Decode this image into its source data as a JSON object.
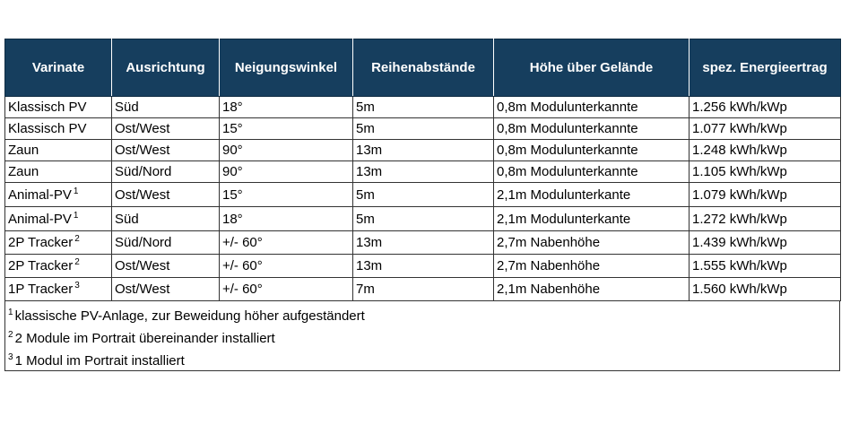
{
  "table": {
    "header": [
      "Varinate",
      "Ausrichtung",
      "Neigungswinkel",
      "Reihenabstände",
      "Höhe über Gelände",
      "spez. Energieertrag"
    ],
    "rows": [
      {
        "cells": [
          "Klassisch PV",
          "Süd",
          "18°",
          "5m",
          "0,8m Modulunterkannte",
          "1.256 kWh/kWp"
        ]
      },
      {
        "cells": [
          "Klassisch PV",
          "Ost/West",
          "15°",
          "5m",
          "0,8m Modulunterkannte",
          "1.077 kWh/kWp"
        ]
      },
      {
        "cells": [
          "Zaun",
          "Ost/West",
          "90°",
          "13m",
          "0,8m Modulunterkannte",
          "1.248 kWh/kWp"
        ]
      },
      {
        "cells": [
          "Zaun",
          "Süd/Nord",
          "90°",
          "13m",
          "0,8m Modulunterkannte",
          "1.105 kWh/kWp"
        ]
      },
      {
        "cells": [
          "Animal-PV",
          "Ost/West",
          "15°",
          "5m",
          "2,1m Modulunterkante",
          "1.079 kWh/kWp"
        ],
        "sup": "1"
      },
      {
        "cells": [
          "Animal-PV",
          "Süd",
          "18°",
          "5m",
          "2,1m Modulunterkante",
          "1.272 kWh/kWp"
        ],
        "sup": "1"
      },
      {
        "cells": [
          "2P Tracker",
          "Süd/Nord",
          "+/- 60°",
          "13m",
          "2,7m Nabenhöhe",
          "1.439 kWh/kWp"
        ],
        "sup": "2"
      },
      {
        "cells": [
          "2P Tracker",
          "Ost/West",
          "+/- 60°",
          "13m",
          "2,7m Nabenhöhe",
          "1.555 kWh/kWp"
        ],
        "sup": "2"
      },
      {
        "cells": [
          "1P Tracker",
          "Ost/West",
          "+/- 60°",
          "7m",
          "2,1m Nabenhöhe",
          "1.560 kWh/kWp"
        ],
        "sup": "3"
      }
    ],
    "footnotes": [
      {
        "marker": "1",
        "text": "klassische PV-Anlage, zur Beweidung höher aufgeständert"
      },
      {
        "marker": "2",
        "text": "2 Module im Portrait übereinander installiert"
      },
      {
        "marker": "3",
        "text": "1 Modul im Portrait installiert"
      }
    ]
  }
}
